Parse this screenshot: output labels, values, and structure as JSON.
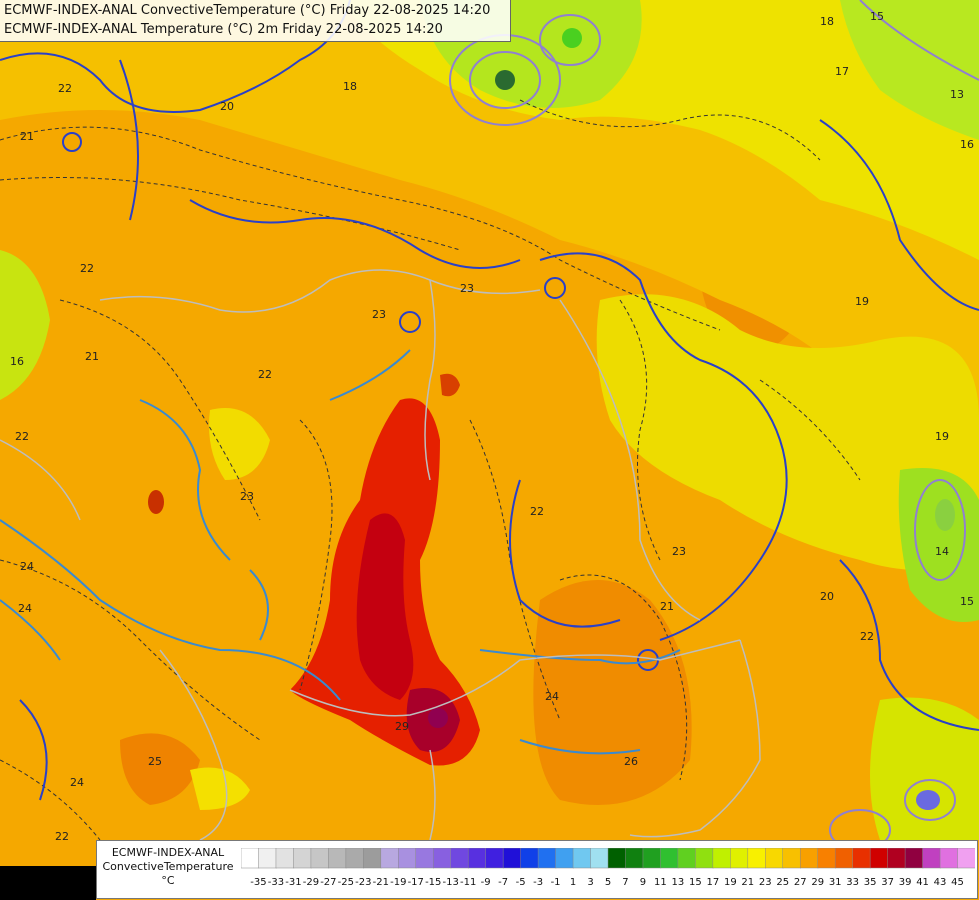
{
  "header": {
    "line1": "ECMWF-INDEX-ANAL ConvectiveTemperature (°C) Friday 22-08-2025 14:20",
    "line2": "ECMWF-INDEX-ANAL Temperature (°C) 2m Friday 22-08-2025 14:20"
  },
  "legend": {
    "model": "ECMWF-INDEX-ANAL",
    "parameter": "ConvectiveTemperature",
    "unit": "°C",
    "ticks": [
      "-35",
      "-33",
      "-31",
      "-29",
      "-27",
      "-25",
      "-23",
      "-21",
      "-19",
      "-17",
      "-15",
      "-13",
      "-11",
      "-9",
      "-7",
      "-5",
      "-3",
      "-1",
      "1",
      "3",
      "5",
      "7",
      "9",
      "11",
      "13",
      "15",
      "17",
      "19",
      "21",
      "23",
      "25",
      "27",
      "29",
      "31",
      "33",
      "35",
      "37",
      "39",
      "41",
      "43",
      "45"
    ],
    "colors": {
      "lightgreen": "#a8e830",
      "yellow": "#f2ec00",
      "gold": "#f5c400",
      "orange": "#f5a800",
      "darkorange": "#f08000",
      "red": "#e52000",
      "darkred": "#b80018",
      "magenta": "#a0006a"
    }
  },
  "map_labels": [
    "22",
    "21",
    "20",
    "18",
    "16",
    "17",
    "13",
    "15",
    "19",
    "23",
    "24",
    "25",
    "26",
    "29",
    "14"
  ]
}
